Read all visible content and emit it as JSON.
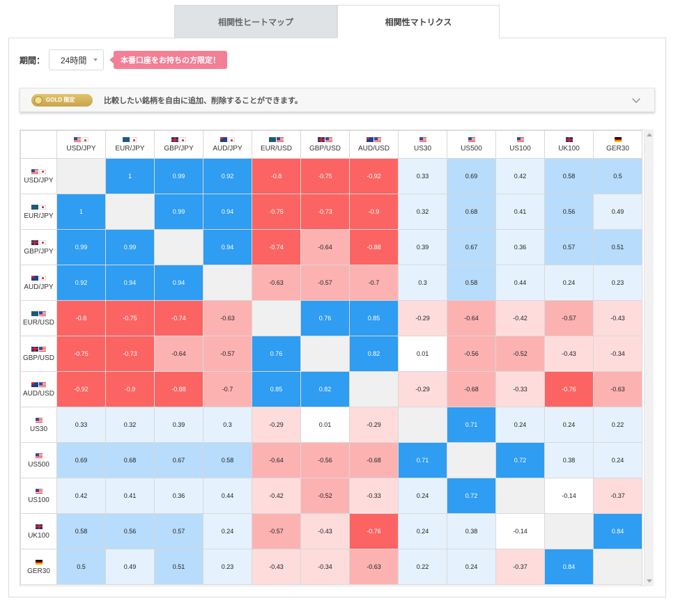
{
  "tabs": [
    {
      "label": "相関性ヒートマップ",
      "active": false
    },
    {
      "label": "相関性マトリクス",
      "active": true
    }
  ],
  "filters": {
    "period_label": "期間：",
    "period_value": "24時間",
    "note": "本番口座をお持ちの方限定！"
  },
  "gold_bar": {
    "badge": "GOLD 限定",
    "text": "比較したい銘柄を自由に追加、削除することができます。"
  },
  "colors": {
    "strong_pos": "#2e9df2",
    "mid_pos": "#b8dcfb",
    "weak_pos": "#e5f2fd",
    "strong_neg": "#fb6462",
    "mid_neg": "#fdb2b2",
    "weak_neg": "#fedcdc",
    "diagonal": "#f0f0f0"
  },
  "matrix": {
    "symbols": [
      {
        "label": "USD/JPY",
        "flags": [
          "us",
          "jp"
        ]
      },
      {
        "label": "EUR/JPY",
        "flags": [
          "eu",
          "jp"
        ]
      },
      {
        "label": "GBP/JPY",
        "flags": [
          "gb",
          "jp"
        ]
      },
      {
        "label": "AUD/JPY",
        "flags": [
          "au",
          "jp"
        ]
      },
      {
        "label": "EUR/USD",
        "flags": [
          "eu",
          "us"
        ]
      },
      {
        "label": "GBP/USD",
        "flags": [
          "gb",
          "us"
        ]
      },
      {
        "label": "AUD/USD",
        "flags": [
          "au",
          "us"
        ]
      },
      {
        "label": "US30",
        "flags": [
          "us"
        ]
      },
      {
        "label": "US500",
        "flags": [
          "us"
        ]
      },
      {
        "label": "US100",
        "flags": [
          "us"
        ]
      },
      {
        "label": "UK100",
        "flags": [
          "gb"
        ]
      },
      {
        "label": "GER30",
        "flags": [
          "de"
        ]
      }
    ],
    "values": [
      [
        null,
        1,
        0.99,
        0.92,
        -0.8,
        -0.75,
        -0.92,
        0.33,
        0.69,
        0.42,
        0.58,
        0.5
      ],
      [
        1,
        null,
        0.99,
        0.94,
        -0.75,
        -0.73,
        -0.9,
        0.32,
        0.68,
        0.41,
        0.56,
        0.49
      ],
      [
        0.99,
        0.99,
        null,
        0.94,
        -0.74,
        -0.64,
        -0.88,
        0.39,
        0.67,
        0.36,
        0.57,
        0.51
      ],
      [
        0.92,
        0.94,
        0.94,
        null,
        -0.63,
        -0.57,
        -0.7,
        0.3,
        0.58,
        0.44,
        0.24,
        0.23
      ],
      [
        -0.8,
        -0.75,
        -0.74,
        -0.63,
        null,
        0.76,
        0.85,
        -0.29,
        -0.64,
        -0.42,
        -0.57,
        -0.43
      ],
      [
        -0.75,
        -0.73,
        -0.64,
        -0.57,
        0.76,
        null,
        0.82,
        0.01,
        -0.56,
        -0.52,
        -0.43,
        -0.34
      ],
      [
        -0.92,
        -0.9,
        -0.88,
        -0.7,
        0.85,
        0.82,
        null,
        -0.29,
        -0.68,
        -0.33,
        -0.76,
        -0.63
      ],
      [
        0.33,
        0.32,
        0.39,
        0.3,
        -0.29,
        0.01,
        -0.29,
        null,
        0.71,
        0.24,
        0.24,
        0.22
      ],
      [
        0.69,
        0.68,
        0.67,
        0.58,
        -0.64,
        -0.56,
        -0.68,
        0.71,
        null,
        0.72,
        0.38,
        0.24
      ],
      [
        0.42,
        0.41,
        0.36,
        0.44,
        -0.42,
        -0.52,
        -0.33,
        0.24,
        0.72,
        null,
        -0.14,
        -0.37
      ],
      [
        0.58,
        0.56,
        0.57,
        0.24,
        -0.57,
        -0.43,
        -0.76,
        0.24,
        0.38,
        -0.14,
        null,
        0.84
      ],
      [
        0.5,
        0.49,
        0.51,
        0.23,
        -0.43,
        -0.34,
        -0.63,
        0.22,
        0.24,
        -0.37,
        0.84,
        null
      ]
    ],
    "strong_cells": [
      [
        0,
        1
      ],
      [
        0,
        2
      ],
      [
        0,
        3
      ],
      [
        0,
        4
      ],
      [
        0,
        5
      ],
      [
        0,
        6
      ],
      [
        1,
        0
      ],
      [
        1,
        2
      ],
      [
        1,
        3
      ],
      [
        1,
        4
      ],
      [
        1,
        5
      ],
      [
        1,
        6
      ],
      [
        2,
        0
      ],
      [
        2,
        1
      ],
      [
        2,
        3
      ],
      [
        2,
        4
      ],
      [
        2,
        6
      ],
      [
        3,
        0
      ],
      [
        3,
        1
      ],
      [
        3,
        2
      ],
      [
        4,
        0
      ],
      [
        4,
        1
      ],
      [
        4,
        2
      ],
      [
        4,
        5
      ],
      [
        4,
        6
      ],
      [
        5,
        0
      ],
      [
        5,
        1
      ],
      [
        5,
        4
      ],
      [
        5,
        6
      ],
      [
        6,
        0
      ],
      [
        6,
        1
      ],
      [
        6,
        2
      ],
      [
        6,
        4
      ],
      [
        6,
        5
      ],
      [
        6,
        10
      ],
      [
        7,
        8
      ],
      [
        8,
        7
      ],
      [
        8,
        9
      ],
      [
        9,
        8
      ],
      [
        10,
        6
      ],
      [
        10,
        11
      ],
      [
        11,
        10
      ]
    ]
  }
}
